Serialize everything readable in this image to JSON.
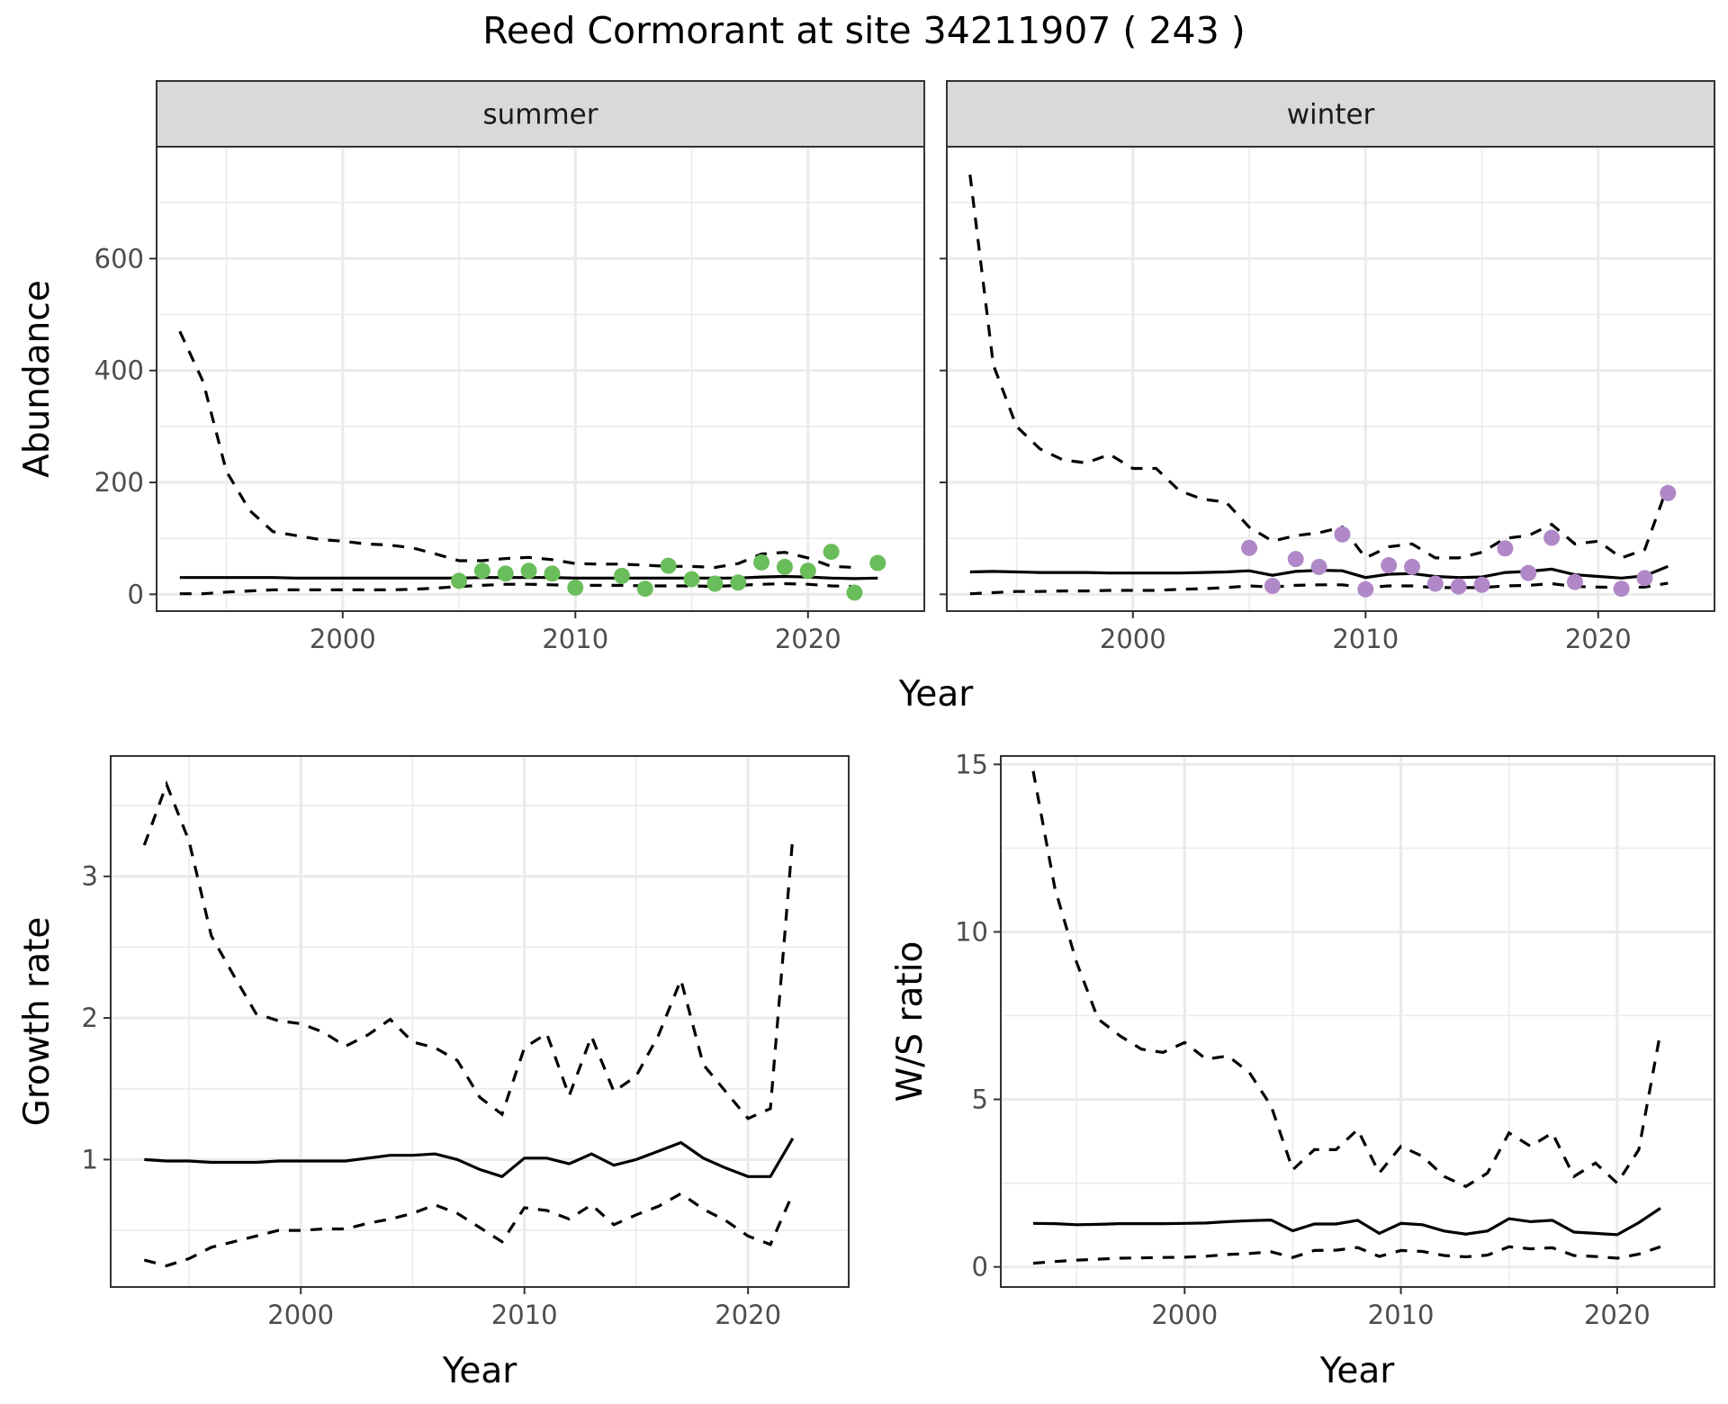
{
  "title": "Reed Cormorant at site 34211907 ( 243 )",
  "chart_data": [
    {
      "id": "abundance-summer",
      "type": "line",
      "facet": "summer",
      "xlabel": "",
      "ylabel": "Abundance",
      "xlim": [
        1992,
        2025
      ],
      "ylim": [
        -30,
        800
      ],
      "xticks": [
        2000,
        2010,
        2020
      ],
      "yticks": [
        0,
        200,
        400,
        600
      ],
      "grid": true,
      "point_color": "#6abd5b",
      "lines": {
        "x": [
          1993,
          1994,
          1995,
          1996,
          1997,
          1998,
          1999,
          2000,
          2001,
          2002,
          2003,
          2004,
          2005,
          2006,
          2007,
          2008,
          2009,
          2010,
          2011,
          2012,
          2013,
          2014,
          2015,
          2016,
          2017,
          2018,
          2019,
          2020,
          2021,
          2022,
          2023
        ],
        "mid": [
          30,
          30,
          30,
          30,
          30,
          29,
          29,
          29,
          29,
          29,
          29,
          29,
          29,
          30,
          30,
          30,
          30,
          29,
          29,
          29,
          29,
          29,
          29,
          29,
          29,
          31,
          32,
          31,
          29,
          28,
          29
        ],
        "upper": [
          470,
          380,
          220,
          150,
          112,
          105,
          98,
          95,
          90,
          88,
          83,
          72,
          60,
          60,
          64,
          66,
          62,
          55,
          54,
          54,
          52,
          50,
          50,
          48,
          55,
          72,
          75,
          65,
          50,
          48,
          null
        ],
        "lower": [
          1,
          1,
          4,
          6,
          8,
          8,
          8,
          8,
          8,
          8,
          9,
          11,
          14,
          16,
          18,
          18,
          17,
          16,
          16,
          16,
          15,
          15,
          15,
          14,
          16,
          18,
          19,
          18,
          15,
          14,
          null
        ]
      },
      "points": {
        "x": [
          2005,
          2006,
          2007,
          2008,
          2009,
          2010,
          2012,
          2013,
          2014,
          2015,
          2016,
          2017,
          2018,
          2019,
          2020,
          2021,
          2022,
          2023
        ],
        "y": [
          24,
          42,
          37,
          42,
          37,
          12,
          33,
          10,
          51,
          27,
          19,
          21,
          57,
          49,
          42,
          76,
          3,
          56
        ]
      }
    },
    {
      "id": "abundance-winter",
      "type": "line",
      "facet": "winter",
      "xlabel": "",
      "ylabel": "",
      "xlim": [
        1992,
        2025
      ],
      "ylim": [
        -30,
        800
      ],
      "xticks": [
        2000,
        2010,
        2020
      ],
      "yticks": [
        0,
        200,
        400,
        600
      ],
      "grid": true,
      "point_color": "#b088c7",
      "lines": {
        "x": [
          1993,
          1994,
          1995,
          1996,
          1997,
          1998,
          1999,
          2000,
          2001,
          2002,
          2003,
          2004,
          2005,
          2006,
          2007,
          2008,
          2009,
          2010,
          2011,
          2012,
          2013,
          2014,
          2015,
          2016,
          2017,
          2018,
          2019,
          2020,
          2021,
          2022,
          2023
        ],
        "mid": [
          40,
          41,
          40,
          39,
          39,
          39,
          38,
          38,
          38,
          38,
          39,
          40,
          42,
          34,
          41,
          43,
          42,
          30,
          36,
          37,
          32,
          30,
          31,
          39,
          41,
          45,
          35,
          32,
          29,
          33,
          50
        ],
        "upper": [
          750,
          410,
          300,
          260,
          240,
          235,
          250,
          225,
          225,
          185,
          170,
          165,
          120,
          95,
          105,
          110,
          120,
          65,
          85,
          90,
          65,
          65,
          75,
          100,
          105,
          125,
          90,
          95,
          65,
          80,
          195
        ],
        "lower": [
          1,
          3,
          5,
          5,
          6,
          6,
          7,
          7,
          7,
          9,
          10,
          12,
          15,
          13,
          16,
          17,
          17,
          12,
          15,
          15,
          12,
          12,
          12,
          15,
          16,
          19,
          14,
          13,
          12,
          13,
          20
        ]
      },
      "points": {
        "x": [
          2005,
          2006,
          2007,
          2008,
          2009,
          2010,
          2011,
          2012,
          2013,
          2014,
          2015,
          2016,
          2017,
          2018,
          2019,
          2020,
          2021,
          2022,
          2023
        ],
        "y": [
          83,
          15,
          63,
          49,
          107,
          9,
          52,
          49,
          19,
          14,
          17,
          82,
          38,
          101,
          22,
          null,
          10,
          29,
          181
        ]
      }
    },
    {
      "id": "growth-rate",
      "type": "line",
      "xlabel": "Year",
      "ylabel": "Growth rate",
      "xlim": [
        1991.5,
        2024.5
      ],
      "ylim": [
        0.1,
        3.85
      ],
      "xticks": [
        2000,
        2010,
        2020
      ],
      "yticks": [
        1,
        2,
        3
      ],
      "grid": true,
      "lines": {
        "x": [
          1993,
          1994,
          1995,
          1996,
          1997,
          1998,
          1999,
          2000,
          2001,
          2002,
          2003,
          2004,
          2005,
          2006,
          2007,
          2008,
          2009,
          2010,
          2011,
          2012,
          2013,
          2014,
          2015,
          2016,
          2017,
          2018,
          2019,
          2020,
          2021,
          2022
        ],
        "mid": [
          1.0,
          0.99,
          0.99,
          0.98,
          0.98,
          0.98,
          0.99,
          0.99,
          0.99,
          0.99,
          1.01,
          1.03,
          1.03,
          1.04,
          1.0,
          0.93,
          0.88,
          1.01,
          1.01,
          0.97,
          1.04,
          0.96,
          1.0,
          1.06,
          1.12,
          1.01,
          0.94,
          0.88,
          0.88,
          1.15
        ],
        "upper": [
          3.22,
          3.65,
          3.25,
          2.58,
          2.3,
          2.03,
          1.98,
          1.96,
          1.9,
          1.8,
          1.88,
          1.99,
          1.83,
          1.79,
          1.7,
          1.44,
          1.32,
          1.79,
          1.89,
          1.45,
          1.87,
          1.48,
          1.59,
          1.88,
          2.27,
          1.67,
          1.48,
          1.29,
          1.36,
          3.28
        ],
        "lower": [
          0.29,
          0.25,
          0.3,
          0.38,
          0.42,
          0.46,
          0.5,
          0.5,
          0.51,
          0.51,
          0.55,
          0.58,
          0.62,
          0.68,
          0.62,
          0.52,
          0.42,
          0.66,
          0.64,
          0.58,
          0.68,
          0.54,
          0.61,
          0.67,
          0.76,
          0.65,
          0.57,
          0.46,
          0.4,
          0.76
        ]
      }
    },
    {
      "id": "ws-ratio",
      "type": "line",
      "xlabel": "Year",
      "ylabel": "W/S ratio",
      "xlim": [
        1991.5,
        2024.5
      ],
      "ylim": [
        -0.6,
        15.25
      ],
      "xticks": [
        2000,
        2010,
        2020
      ],
      "yticks": [
        0,
        5,
        10,
        15
      ],
      "grid": true,
      "lines": {
        "x": [
          1993,
          1994,
          1995,
          1996,
          1997,
          1998,
          1999,
          2000,
          2001,
          2002,
          2003,
          2004,
          2005,
          2006,
          2007,
          2008,
          2009,
          2010,
          2011,
          2012,
          2013,
          2014,
          2015,
          2016,
          2017,
          2018,
          2019,
          2020,
          2021,
          2022
        ],
        "mid": [
          1.3,
          1.29,
          1.26,
          1.27,
          1.29,
          1.29,
          1.29,
          1.3,
          1.31,
          1.35,
          1.38,
          1.4,
          1.08,
          1.28,
          1.28,
          1.39,
          1.0,
          1.3,
          1.26,
          1.07,
          0.98,
          1.07,
          1.44,
          1.35,
          1.39,
          1.04,
          1.0,
          0.96,
          1.32,
          1.75
        ],
        "upper": [
          14.8,
          11.3,
          9.1,
          7.4,
          6.9,
          6.5,
          6.4,
          6.7,
          6.2,
          6.3,
          5.8,
          4.8,
          2.9,
          3.5,
          3.5,
          4.1,
          2.8,
          3.6,
          3.3,
          2.7,
          2.4,
          2.8,
          4.0,
          3.6,
          4.0,
          2.7,
          3.1,
          2.5,
          3.5,
          7.0
        ],
        "lower": [
          0.11,
          0.16,
          0.2,
          0.23,
          0.26,
          0.27,
          0.28,
          0.29,
          0.32,
          0.37,
          0.4,
          0.45,
          0.28,
          0.49,
          0.5,
          0.58,
          0.31,
          0.49,
          0.46,
          0.34,
          0.3,
          0.35,
          0.6,
          0.54,
          0.57,
          0.34,
          0.31,
          0.26,
          0.38,
          0.6
        ]
      }
    }
  ]
}
